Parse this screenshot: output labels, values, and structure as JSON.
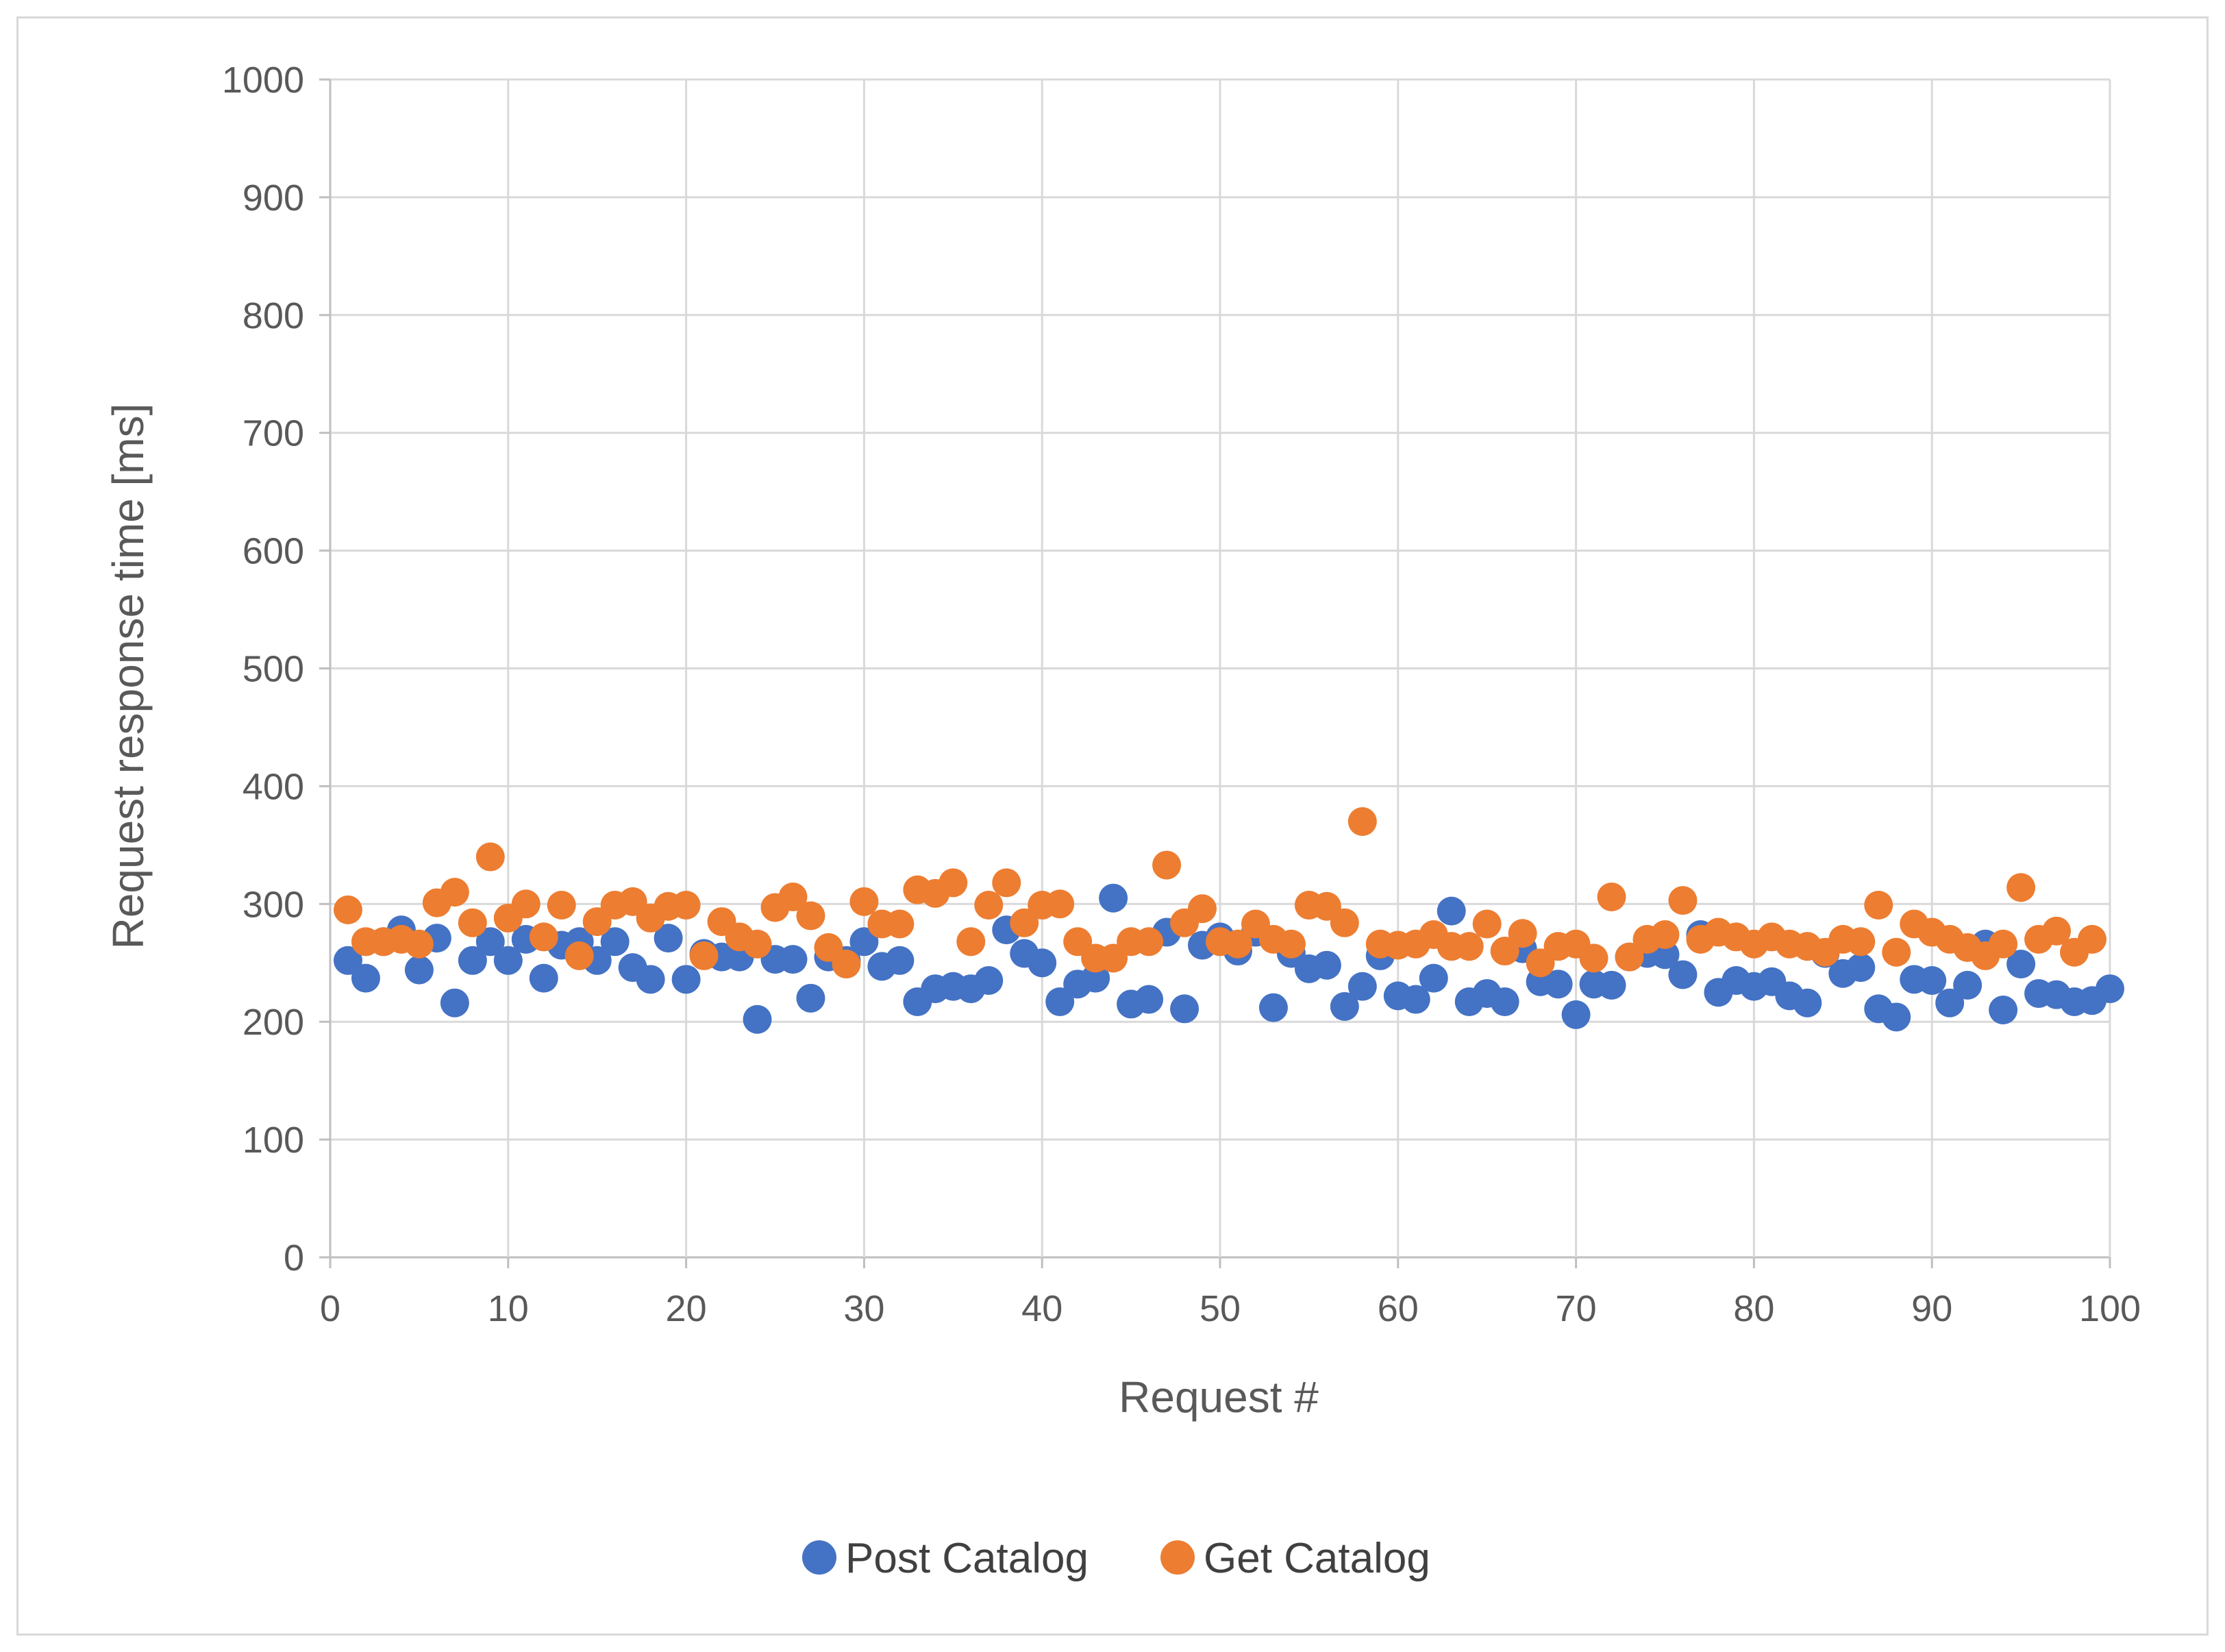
{
  "chart_data": {
    "type": "scatter",
    "title": "",
    "xlabel": "Request #",
    "ylabel": "Request response time [ms]",
    "xlim": [
      0,
      100
    ],
    "ylim": [
      0,
      1000
    ],
    "xticks": [
      "0",
      "10",
      "20",
      "30",
      "40",
      "50",
      "60",
      "70",
      "80",
      "90",
      "100"
    ],
    "yticks": [
      "0",
      "100",
      "200",
      "300",
      "400",
      "500",
      "600",
      "700",
      "800",
      "900",
      "1000"
    ],
    "grid": true,
    "legend_position": "bottom",
    "series": [
      {
        "name": "Post Catalog",
        "color": "#4472c4",
        "x": [
          1,
          2,
          3,
          4,
          5,
          6,
          7,
          8,
          9,
          10,
          11,
          12,
          13,
          14,
          15,
          16,
          17,
          18,
          19,
          20,
          21,
          22,
          23,
          24,
          25,
          26,
          27,
          28,
          29,
          30,
          31,
          32,
          33,
          34,
          35,
          36,
          37,
          38,
          39,
          40,
          41,
          42,
          43,
          44,
          45,
          46,
          47,
          48,
          49,
          50,
          51,
          52,
          53,
          54,
          55,
          56,
          57,
          58,
          59,
          60,
          61,
          62,
          63,
          64,
          65,
          66,
          67,
          68,
          69,
          70,
          71,
          72,
          73,
          74,
          75,
          76,
          77,
          78,
          79,
          80,
          81,
          82,
          83,
          84,
          85,
          86,
          87,
          88,
          89,
          90,
          91,
          92,
          93,
          94,
          95,
          96,
          97,
          98,
          99,
          100
        ],
        "y": [
          252,
          237,
          268,
          278,
          244,
          271,
          216,
          252,
          268,
          252,
          270,
          237,
          265,
          268,
          252,
          268,
          246,
          236,
          271,
          236,
          258,
          255,
          255,
          202,
          253,
          253,
          220,
          255,
          252,
          268,
          247,
          252,
          217,
          228,
          230,
          228,
          235,
          278,
          258,
          250,
          217,
          232,
          237,
          305,
          215,
          219,
          276,
          211,
          265,
          272,
          260,
          276,
          212,
          258,
          245,
          248,
          213,
          230,
          256,
          222,
          219,
          237,
          294,
          217,
          224,
          217,
          262,
          234,
          232,
          206,
          232,
          231,
          255,
          258,
          257,
          240,
          274,
          225,
          235,
          230,
          234,
          222,
          216,
          258,
          241,
          246,
          211,
          204,
          236,
          235,
          216,
          231,
          266,
          210,
          249,
          224,
          223,
          217,
          218,
          228
        ]
      },
      {
        "name": "Get Catalog",
        "color": "#ed7d31",
        "x": [
          1,
          2,
          3,
          4,
          5,
          6,
          7,
          8,
          9,
          10,
          11,
          12,
          13,
          14,
          15,
          16,
          17,
          18,
          19,
          20,
          21,
          22,
          23,
          24,
          25,
          26,
          27,
          28,
          29,
          30,
          31,
          32,
          33,
          34,
          35,
          36,
          37,
          38,
          39,
          40,
          41,
          42,
          43,
          44,
          45,
          46,
          47,
          48,
          49,
          50,
          51,
          52,
          53,
          54,
          55,
          56,
          57,
          58,
          59,
          60,
          61,
          62,
          63,
          64,
          65,
          66,
          67,
          68,
          69,
          70,
          71,
          72,
          73,
          74,
          75,
          76,
          77,
          78,
          79,
          80,
          81,
          82,
          83,
          84,
          85,
          86,
          87,
          88,
          89,
          90,
          91,
          92,
          93,
          94,
          95,
          96,
          97,
          98,
          99
        ],
        "y": [
          295,
          268,
          268,
          270,
          266,
          301,
          310,
          284,
          340,
          288,
          300,
          272,
          299,
          256,
          285,
          299,
          302,
          288,
          298,
          299,
          256,
          285,
          272,
          266,
          297,
          306,
          290,
          263,
          249,
          302,
          283,
          283,
          312,
          309,
          318,
          268,
          299,
          318,
          284,
          299,
          300,
          268,
          254,
          254,
          268,
          268,
          333,
          284,
          296,
          268,
          266,
          283,
          270,
          266,
          299,
          298,
          284,
          370,
          266,
          265,
          266,
          274,
          264,
          264,
          283,
          260,
          275,
          250,
          264,
          266,
          254,
          306,
          255,
          270,
          274,
          303,
          270,
          276,
          272,
          266,
          272,
          266,
          264,
          259,
          270,
          268,
          299,
          259,
          283,
          276,
          270,
          263,
          256,
          266,
          314,
          270,
          277,
          259,
          270
        ]
      }
    ]
  }
}
